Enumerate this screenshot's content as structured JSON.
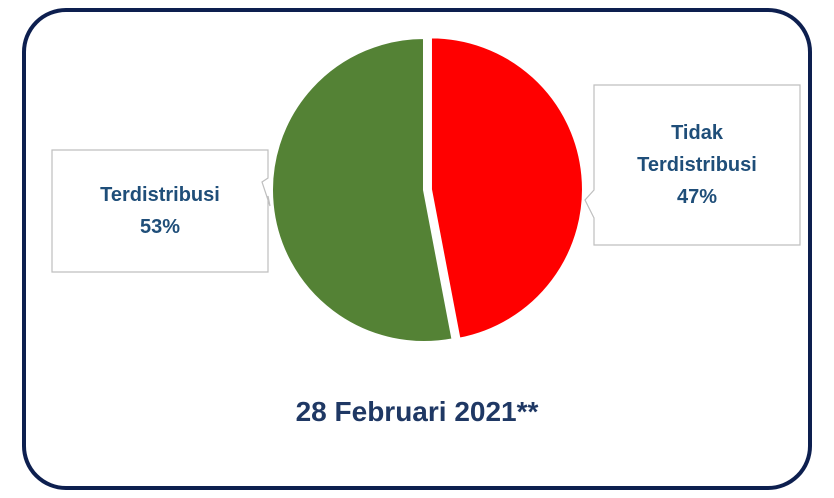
{
  "chart_data": {
    "type": "pie",
    "categories": [
      "Tidak Terdistribusi",
      "Terdistribusi"
    ],
    "values": [
      47,
      53
    ],
    "value_labels": [
      "47%",
      "53%"
    ],
    "colors": [
      "#ff0000",
      "#548235"
    ],
    "annotation": "28 Februari 2021**"
  }
}
